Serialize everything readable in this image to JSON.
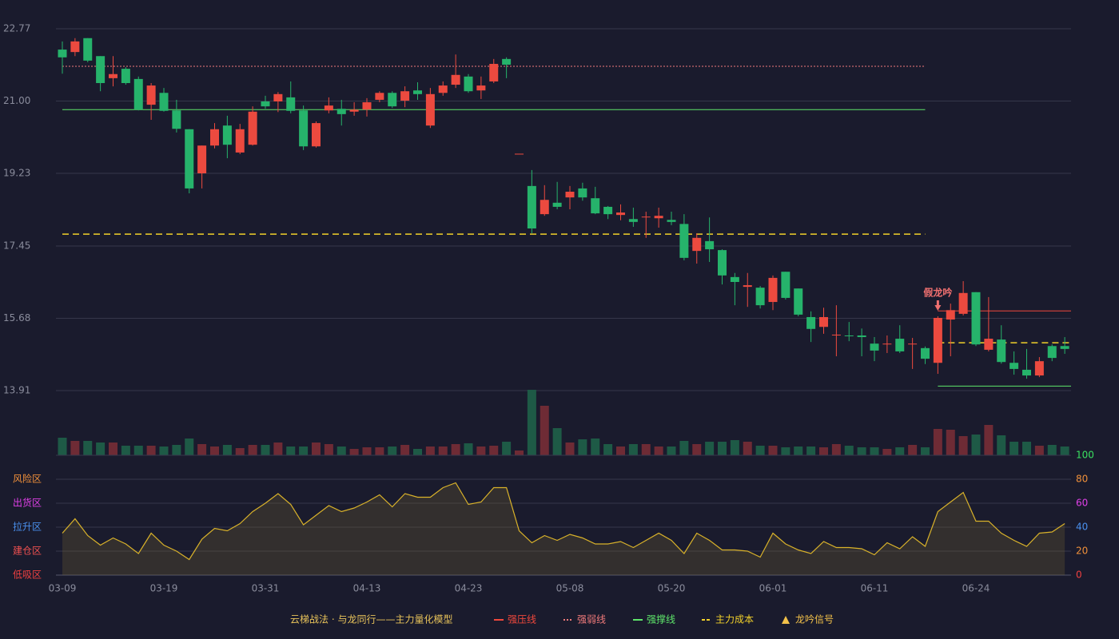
{
  "chart_data": {
    "type": "candlestick",
    "title": "云梯战法 · 与龙同行——主力量化模型",
    "categories": [
      "03-09",
      null,
      null,
      null,
      null,
      null,
      null,
      null,
      "03-19",
      null,
      null,
      null,
      null,
      null,
      null,
      null,
      "03-31",
      null,
      null,
      null,
      null,
      null,
      null,
      null,
      "04-13",
      null,
      null,
      null,
      null,
      null,
      null,
      null,
      "04-23",
      null,
      null,
      null,
      null,
      null,
      null,
      null,
      "05-08",
      null,
      null,
      null,
      null,
      null,
      null,
      null,
      "05-20",
      null,
      null,
      null,
      null,
      null,
      null,
      null,
      "06-01",
      null,
      null,
      null,
      null,
      null,
      null,
      null,
      "06-11",
      null,
      null,
      null,
      null,
      null,
      null,
      null,
      "06-24",
      null,
      null,
      null,
      null,
      null,
      null,
      null
    ],
    "open": [
      22.26,
      22.2,
      22.54,
      22.1,
      21.56,
      21.79,
      21.54,
      20.91,
      21.2,
      20.77,
      20.31,
      19.23,
      19.91,
      20.4,
      19.74,
      19.93,
      20.99,
      20.99,
      21.09,
      20.77,
      19.89,
      20.77,
      20.81,
      20.74,
      20.79,
      21.03,
      21.2,
      21.01,
      21.26,
      20.4,
      21.2,
      21.4,
      21.6,
      21.26,
      21.48,
      22.03,
      19.7,
      18.92,
      18.23,
      18.51,
      18.64,
      18.86,
      18.62,
      18.41,
      18.21,
      18.11,
      18.16,
      18.13,
      18.09,
      17.99,
      17.33,
      17.57,
      17.35,
      16.69,
      16.45,
      16.43,
      16.08,
      16.82,
      16.41,
      15.71,
      15.47,
      15.26,
      15.26,
      15.26,
      15.06,
      15.04,
      15.18,
      15.04,
      14.95,
      14.59,
      15.65,
      15.79,
      16.32,
      14.91,
      15.16,
      14.59,
      14.42,
      14.28,
      15.0,
      15.0
    ],
    "close": [
      22.07,
      22.46,
      21.99,
      21.44,
      21.66,
      21.44,
      20.79,
      21.38,
      20.76,
      20.32,
      18.86,
      19.91,
      20.31,
      19.93,
      20.31,
      20.74,
      20.87,
      21.17,
      20.76,
      19.89,
      20.46,
      20.89,
      20.68,
      20.79,
      20.97,
      21.2,
      20.87,
      21.24,
      21.17,
      21.17,
      21.38,
      21.64,
      21.24,
      21.38,
      21.91,
      21.89,
      19.71,
      17.88,
      18.58,
      18.41,
      18.78,
      18.64,
      18.25,
      18.23,
      18.27,
      18.04,
      18.17,
      18.19,
      18.04,
      17.16,
      17.65,
      17.37,
      16.73,
      16.57,
      16.49,
      16.0,
      16.67,
      16.18,
      15.77,
      15.42,
      15.71,
      15.28,
      15.24,
      15.22,
      14.89,
      15.06,
      14.87,
      15.06,
      14.69,
      15.69,
      15.88,
      16.3,
      15.04,
      15.18,
      14.61,
      14.44,
      14.28,
      14.63,
      14.71,
      14.93
    ],
    "high": [
      22.46,
      22.54,
      22.54,
      22.1,
      22.1,
      21.83,
      21.6,
      21.44,
      21.32,
      21.03,
      20.31,
      19.91,
      20.46,
      20.64,
      20.44,
      20.87,
      21.13,
      21.22,
      21.48,
      20.89,
      20.5,
      21.09,
      21.03,
      20.97,
      21.07,
      21.24,
      21.24,
      21.36,
      21.46,
      21.32,
      21.48,
      22.14,
      21.66,
      21.6,
      22.03,
      22.07,
      19.71,
      19.31,
      18.94,
      19.02,
      18.92,
      19.0,
      18.9,
      18.43,
      18.47,
      18.39,
      18.29,
      18.39,
      18.29,
      18.23,
      17.76,
      18.15,
      17.37,
      16.79,
      16.79,
      16.47,
      16.73,
      16.82,
      16.41,
      15.85,
      15.94,
      16.0,
      15.59,
      15.43,
      15.22,
      15.26,
      15.51,
      15.2,
      14.99,
      15.73,
      16.04,
      16.59,
      16.32,
      16.2,
      15.51,
      14.87,
      14.93,
      14.73,
      15.04,
      15.22
    ],
    "low": [
      21.67,
      22.1,
      21.95,
      21.24,
      21.36,
      21.4,
      20.77,
      20.54,
      20.74,
      20.23,
      18.74,
      18.86,
      19.84,
      19.6,
      19.7,
      19.91,
      20.81,
      20.73,
      20.7,
      19.8,
      19.86,
      20.7,
      20.4,
      20.64,
      20.62,
      20.97,
      20.83,
      20.85,
      21.03,
      20.34,
      21.13,
      21.32,
      21.2,
      21.05,
      21.44,
      21.56,
      19.7,
      17.76,
      18.19,
      18.35,
      18.35,
      18.56,
      18.23,
      18.11,
      18.08,
      17.92,
      17.65,
      17.9,
      17.96,
      17.1,
      17.02,
      17.06,
      16.51,
      16.0,
      15.96,
      15.92,
      15.88,
      16.14,
      15.73,
      15.1,
      15.3,
      14.75,
      15.12,
      14.75,
      14.63,
      14.83,
      14.83,
      14.44,
      14.56,
      14.32,
      14.75,
      15.75,
      15.0,
      14.87,
      14.57,
      14.3,
      14.2,
      14.24,
      14.63,
      14.81
    ],
    "ylim": [
      13.91,
      22.77
    ],
    "yticks": [
      13.91,
      15.68,
      17.45,
      19.23,
      {
        "value": 21,
        "label": "21.00"
      },
      22.77
    ],
    "grid": true,
    "up_color": "#ec4a3f",
    "down_color": "#26b36b",
    "volume": {
      "ylim": [
        0,
        82
      ],
      "up_color": "#6e2b35",
      "down_color": "#1e5a46",
      "values": [
        22,
        18,
        18,
        16,
        16,
        12,
        12,
        12,
        11,
        13,
        21,
        14,
        11,
        13,
        9,
        13,
        13,
        16,
        11,
        11,
        16,
        14,
        11,
        8,
        10,
        10,
        11,
        13,
        8,
        11,
        11,
        14,
        15,
        11,
        12,
        17,
        6,
        82,
        62,
        34,
        16,
        20,
        21,
        14,
        11,
        14,
        14,
        11,
        11,
        18,
        14,
        17,
        17,
        19,
        17,
        12,
        12,
        10,
        11,
        11,
        10,
        14,
        12,
        10,
        10,
        8,
        10,
        13,
        10,
        33,
        32,
        24,
        26,
        38,
        25,
        17,
        17,
        12,
        13,
        11
      ]
    },
    "legend": [
      {
        "name": "强压线",
        "color": "#f0483c",
        "style": "solid"
      },
      {
        "name": "强弱线",
        "color": "#f07a7a",
        "style": "dotted"
      },
      {
        "name": "强撑线",
        "color": "#5ee66a",
        "style": "solid"
      },
      {
        "name": "主力成本",
        "color": "#f2d12a",
        "style": "dashed"
      },
      {
        "name": "龙吟信号",
        "color": "#f2c14a",
        "style": "triangle"
      }
    ],
    "levels": [
      {
        "legend": 1,
        "value": 21.85,
        "from": 0,
        "to": 68
      },
      {
        "legend": 2,
        "value": 20.79,
        "from": 0,
        "to": 68
      },
      {
        "legend": 3,
        "value": 17.74,
        "from": 0,
        "to": 68
      },
      {
        "legend": 0,
        "value": 15.86,
        "from": 69,
        "to": 79
      },
      {
        "legend": 3,
        "value": 15.08,
        "from": 69,
        "to": 79
      },
      {
        "legend": 2,
        "value": 14.02,
        "from": 69,
        "to": 79
      }
    ],
    "annotation": {
      "text": "假龙吟",
      "index": 69,
      "color": "#f07070"
    },
    "indicator": {
      "type": "line",
      "color": "#d9b22a",
      "values": [
        35,
        47,
        33,
        25,
        31,
        26,
        18,
        35,
        25,
        20,
        13,
        30,
        39,
        37,
        43,
        53,
        60,
        68,
        59,
        42,
        50,
        58,
        53,
        56,
        61,
        67,
        57,
        68,
        65,
        65,
        73,
        77,
        59,
        61,
        73,
        73,
        37,
        27,
        33,
        29,
        34,
        31,
        26,
        26,
        28,
        23,
        29,
        35,
        29,
        18,
        35,
        29,
        21,
        21,
        20,
        15,
        35,
        26,
        21,
        18,
        28,
        23,
        23,
        22,
        17,
        27,
        22,
        32,
        24,
        53,
        61,
        69,
        45,
        45,
        35,
        29,
        24,
        35,
        36,
        43
      ],
      "ylim": [
        0,
        100
      ],
      "yticks": [
        0,
        20,
        40,
        60,
        80,
        100
      ],
      "ytick_colors": [
        "#ef4040",
        "#f0903a",
        "#4a90ee",
        "#e040e8",
        "#f0903a",
        "#3ae060"
      ],
      "zones": [
        {
          "label": "风险区",
          "value": 80,
          "color": "#f0903a"
        },
        {
          "label": "出货区",
          "value": 60,
          "color": "#e040e8"
        },
        {
          "label": "拉升区",
          "value": 40,
          "color": "#4a90ee"
        },
        {
          "label": "建仓区",
          "value": 20,
          "color": "#ef5050"
        },
        {
          "label": "低吸区",
          "value": 0,
          "color": "#ef4040"
        }
      ]
    }
  }
}
